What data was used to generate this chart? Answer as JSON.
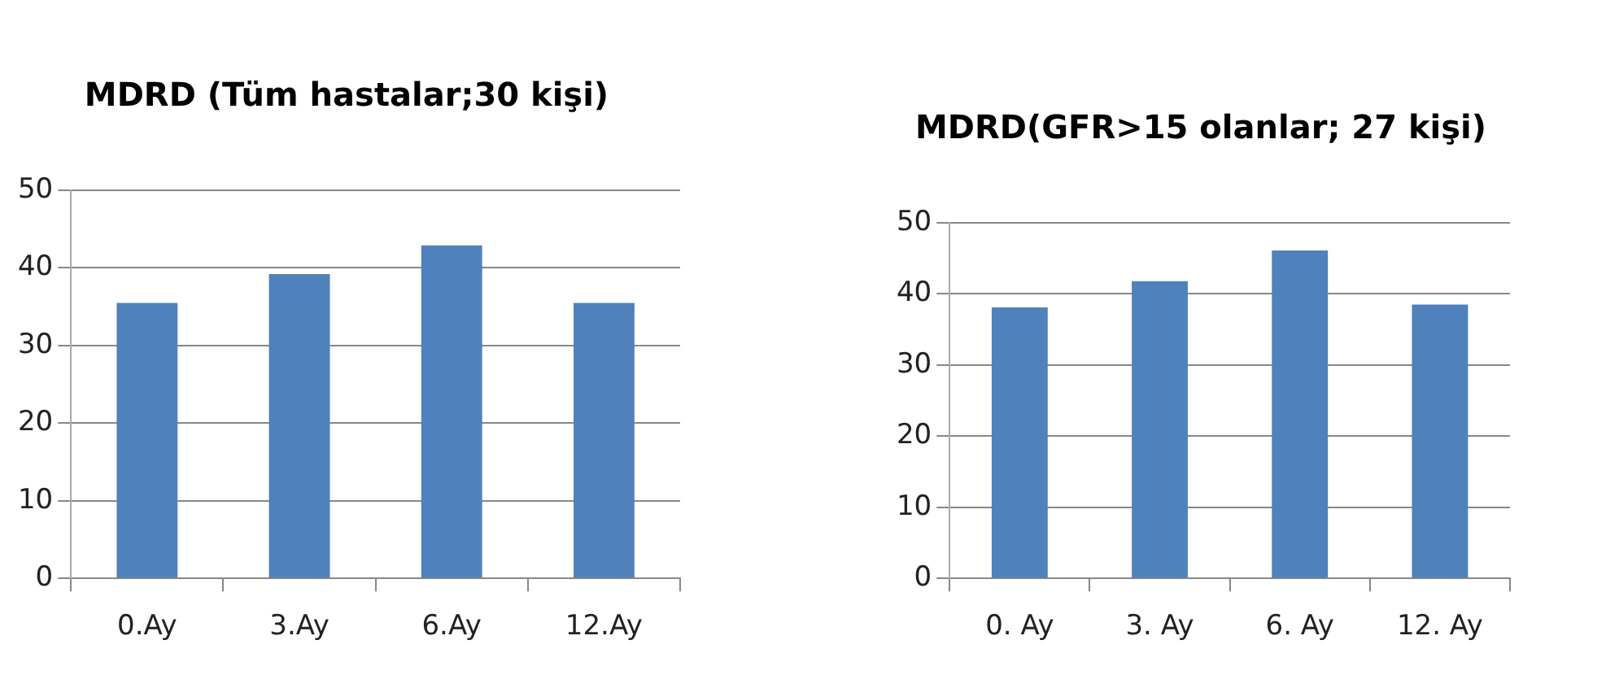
{
  "chart_data": [
    {
      "type": "bar",
      "title": "MDRD (Tüm hastalar;30 kişi)",
      "categories": [
        "0.Ay",
        "3.Ay",
        "6.Ay",
        "12.Ay"
      ],
      "values": [
        35.5,
        39.2,
        42.9,
        35.5
      ],
      "color": "#4f81bd",
      "ylim": [
        0,
        50
      ],
      "yticks": [
        0,
        10,
        20,
        30,
        40,
        50
      ],
      "grid": "y"
    },
    {
      "type": "bar",
      "title": "MDRD(GFR>15 olanlar; 27 kişi)",
      "categories": [
        "0. Ay",
        "3. Ay",
        "6. Ay",
        "12. Ay"
      ],
      "values": [
        38.1,
        41.8,
        46.1,
        38.5
      ],
      "color": "#4f81bd",
      "ylim": [
        0,
        50
      ],
      "yticks": [
        0,
        10,
        20,
        30,
        40,
        50
      ],
      "grid": "y"
    }
  ]
}
